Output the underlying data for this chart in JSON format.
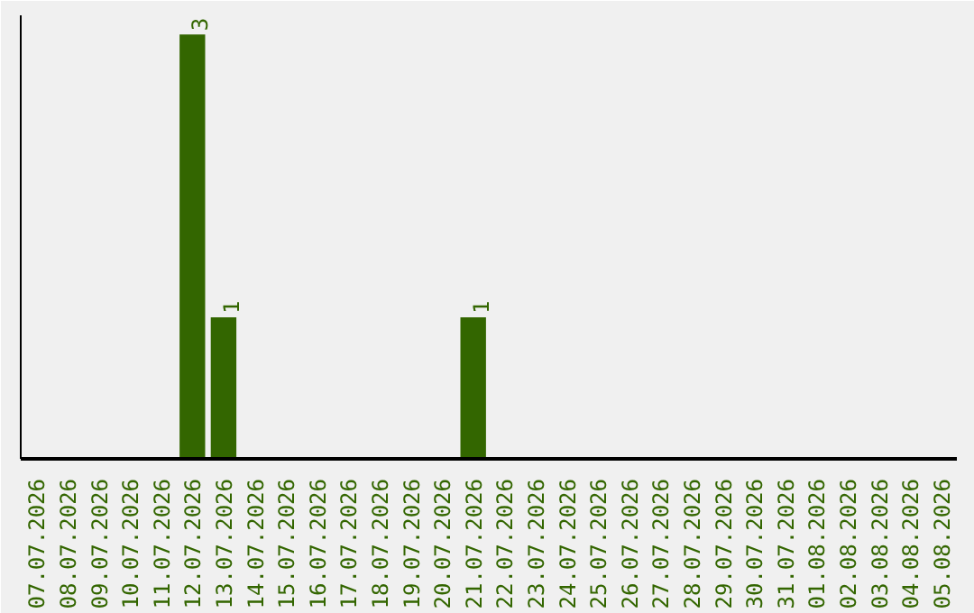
{
  "chart_data": {
    "type": "bar",
    "categories": [
      "07.07.2026",
      "08.07.2026",
      "09.07.2026",
      "10.07.2026",
      "11.07.2026",
      "12.07.2026",
      "13.07.2026",
      "14.07.2026",
      "15.07.2026",
      "16.07.2026",
      "17.07.2026",
      "18.07.2026",
      "19.07.2026",
      "20.07.2026",
      "21.07.2026",
      "22.07.2026",
      "23.07.2026",
      "24.07.2026",
      "25.07.2026",
      "26.07.2026",
      "27.07.2026",
      "28.07.2026",
      "29.07.2026",
      "30.07.2026",
      "31.07.2026",
      "01.08.2026",
      "02.08.2026",
      "03.08.2026",
      "04.08.2026",
      "05.08.2026"
    ],
    "values": [
      0,
      0,
      0,
      0,
      0,
      3,
      1,
      0,
      0,
      0,
      0,
      0,
      0,
      0,
      1,
      0,
      0,
      0,
      0,
      0,
      0,
      0,
      0,
      0,
      0,
      0,
      0,
      0,
      0,
      0
    ],
    "value_labels": [
      null,
      null,
      null,
      null,
      null,
      "3",
      "1",
      null,
      null,
      null,
      null,
      null,
      null,
      null,
      "1",
      null,
      null,
      null,
      null,
      null,
      null,
      null,
      null,
      null,
      null,
      null,
      null,
      null,
      null,
      null
    ],
    "color": "#336600",
    "grid": false
  }
}
